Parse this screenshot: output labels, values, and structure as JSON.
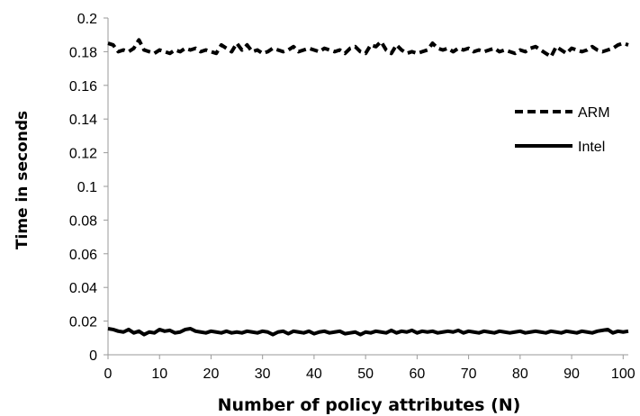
{
  "chart_data": {
    "type": "line",
    "title": "",
    "xlabel": "Number of policy attributes (N)",
    "ylabel": "Time in seconds",
    "xlim": [
      0,
      101
    ],
    "ylim": [
      0,
      0.2
    ],
    "x_ticks": [
      "0",
      "10",
      "20",
      "30",
      "40",
      "50",
      "60",
      "70",
      "80",
      "90",
      "100"
    ],
    "y_ticks": [
      "0",
      "0.02",
      "0.04",
      "0.06",
      "0.08",
      "0.1",
      "0.12",
      "0.14",
      "0.16",
      "0.18",
      "0.2"
    ],
    "grid": false,
    "legend": {
      "placement": "right"
    },
    "series": [
      {
        "name": "ARM",
        "style": "dashed",
        "color": "#000000",
        "x": [
          0,
          1,
          2,
          3,
          4,
          5,
          6,
          7,
          8,
          9,
          10,
          11,
          12,
          13,
          14,
          15,
          16,
          17,
          18,
          19,
          20,
          21,
          22,
          23,
          24,
          25,
          26,
          27,
          28,
          29,
          30,
          31,
          32,
          33,
          34,
          35,
          36,
          37,
          38,
          39,
          40,
          41,
          42,
          43,
          44,
          45,
          46,
          47,
          48,
          49,
          50,
          51,
          52,
          53,
          54,
          55,
          56,
          57,
          58,
          59,
          60,
          61,
          62,
          63,
          64,
          65,
          66,
          67,
          68,
          69,
          70,
          71,
          72,
          73,
          74,
          75,
          76,
          77,
          78,
          79,
          80,
          81,
          82,
          83,
          84,
          85,
          86,
          87,
          88,
          89,
          90,
          91,
          92,
          93,
          94,
          95,
          96,
          97,
          98,
          99,
          100,
          101
        ],
        "values": [
          0.185,
          0.184,
          0.18,
          0.181,
          0.18,
          0.182,
          0.187,
          0.181,
          0.18,
          0.179,
          0.181,
          0.18,
          0.179,
          0.181,
          0.18,
          0.182,
          0.181,
          0.182,
          0.18,
          0.181,
          0.18,
          0.179,
          0.184,
          0.182,
          0.18,
          0.185,
          0.181,
          0.184,
          0.18,
          0.181,
          0.179,
          0.18,
          0.182,
          0.181,
          0.18,
          0.181,
          0.183,
          0.18,
          0.181,
          0.182,
          0.181,
          0.18,
          0.182,
          0.181,
          0.18,
          0.181,
          0.179,
          0.182,
          0.183,
          0.18,
          0.179,
          0.184,
          0.183,
          0.186,
          0.181,
          0.179,
          0.184,
          0.181,
          0.179,
          0.18,
          0.179,
          0.18,
          0.181,
          0.185,
          0.182,
          0.181,
          0.182,
          0.18,
          0.182,
          0.181,
          0.182,
          0.18,
          0.181,
          0.18,
          0.181,
          0.182,
          0.18,
          0.181,
          0.18,
          0.179,
          0.181,
          0.18,
          0.182,
          0.183,
          0.181,
          0.179,
          0.177,
          0.183,
          0.181,
          0.179,
          0.182,
          0.181,
          0.18,
          0.181,
          0.183,
          0.181,
          0.18,
          0.181,
          0.182,
          0.184,
          0.185,
          0.184
        ]
      },
      {
        "name": "Intel",
        "style": "solid",
        "color": "#000000",
        "x": [
          0,
          1,
          2,
          3,
          4,
          5,
          6,
          7,
          8,
          9,
          10,
          11,
          12,
          13,
          14,
          15,
          16,
          17,
          18,
          19,
          20,
          21,
          22,
          23,
          24,
          25,
          26,
          27,
          28,
          29,
          30,
          31,
          32,
          33,
          34,
          35,
          36,
          37,
          38,
          39,
          40,
          41,
          42,
          43,
          44,
          45,
          46,
          47,
          48,
          49,
          50,
          51,
          52,
          53,
          54,
          55,
          56,
          57,
          58,
          59,
          60,
          61,
          62,
          63,
          64,
          65,
          66,
          67,
          68,
          69,
          70,
          71,
          72,
          73,
          74,
          75,
          76,
          77,
          78,
          79,
          80,
          81,
          82,
          83,
          84,
          85,
          86,
          87,
          88,
          89,
          90,
          91,
          92,
          93,
          94,
          95,
          96,
          97,
          98,
          99,
          100,
          101
        ],
        "values": [
          0.0155,
          0.015,
          0.014,
          0.0135,
          0.015,
          0.013,
          0.014,
          0.012,
          0.0135,
          0.013,
          0.015,
          0.014,
          0.0145,
          0.013,
          0.0135,
          0.015,
          0.0155,
          0.014,
          0.0135,
          0.013,
          0.014,
          0.0135,
          0.013,
          0.014,
          0.013,
          0.0135,
          0.013,
          0.014,
          0.0135,
          0.013,
          0.014,
          0.0135,
          0.012,
          0.0135,
          0.014,
          0.0125,
          0.014,
          0.0135,
          0.013,
          0.014,
          0.0125,
          0.0135,
          0.014,
          0.013,
          0.0135,
          0.014,
          0.0125,
          0.013,
          0.0135,
          0.012,
          0.0135,
          0.013,
          0.014,
          0.0135,
          0.013,
          0.0145,
          0.013,
          0.014,
          0.0135,
          0.0145,
          0.013,
          0.014,
          0.0135,
          0.014,
          0.013,
          0.0135,
          0.014,
          0.0135,
          0.0145,
          0.013,
          0.014,
          0.0135,
          0.013,
          0.014,
          0.0135,
          0.013,
          0.014,
          0.0135,
          0.013,
          0.0135,
          0.014,
          0.013,
          0.0135,
          0.014,
          0.0135,
          0.013,
          0.014,
          0.0135,
          0.013,
          0.014,
          0.0135,
          0.013,
          0.014,
          0.0135,
          0.013,
          0.014,
          0.0145,
          0.015,
          0.013,
          0.014,
          0.0135,
          0.014
        ]
      }
    ]
  }
}
